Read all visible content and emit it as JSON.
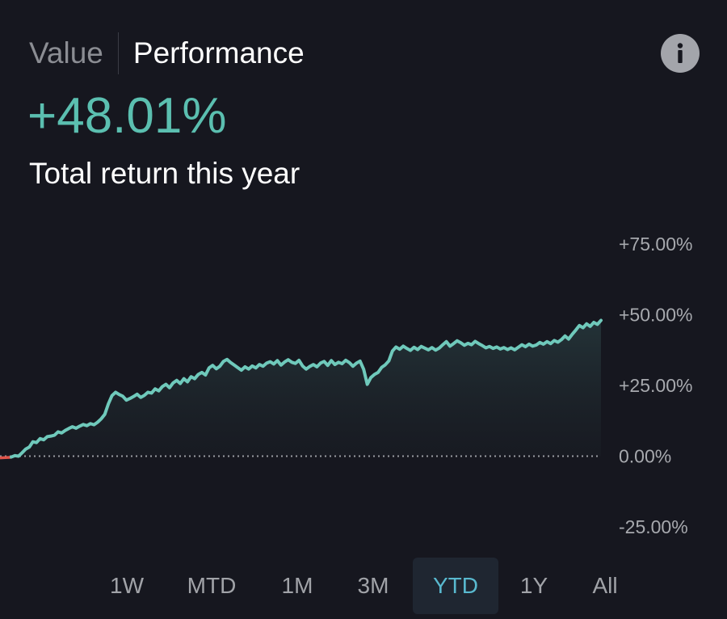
{
  "tabs": {
    "value_label": "Value",
    "performance_label": "Performance",
    "active": "Performance"
  },
  "info_icon": "info-icon",
  "summary": {
    "return_value": "+48.01%",
    "return_label": "Total return this year"
  },
  "colors": {
    "background": "#16171f",
    "accent": "#5bbfb0",
    "line": "#6fc9bb",
    "negative": "#e0544a",
    "range_active_text": "#59b9cf"
  },
  "ranges": {
    "items": [
      "1W",
      "MTD",
      "1M",
      "3M",
      "YTD",
      "1Y",
      "All"
    ],
    "active": "YTD"
  },
  "chart_data": {
    "type": "area",
    "title": "",
    "xlabel": "",
    "ylabel": "",
    "ylim": [
      -25,
      75
    ],
    "y_ticks": [
      "+75.00%",
      "+50.00%",
      "+25.00%",
      "0.00%",
      "-25.00%"
    ],
    "y_tick_values": [
      75,
      50,
      25,
      0,
      -25
    ],
    "baseline": 0,
    "grid": false,
    "series": [
      {
        "values": [
          -0.3,
          0.2,
          0.0,
          1.2,
          2.5,
          3.2,
          5.1,
          4.8,
          6.2,
          5.8,
          6.9,
          7.1,
          7.4,
          8.6,
          8.2,
          9.1,
          9.8,
          10.4,
          9.9,
          10.6,
          11.2,
          10.8,
          11.5,
          11.1,
          12.0,
          13.2,
          14.8,
          18.5,
          21.4,
          22.6,
          21.8,
          21.2,
          19.8,
          20.4,
          21.1,
          21.9,
          20.8,
          21.5,
          22.6,
          22.3,
          23.8,
          23.1,
          24.6,
          25.4,
          24.2,
          25.9,
          26.8,
          25.7,
          27.4,
          26.3,
          28.1,
          27.4,
          28.9,
          29.6,
          28.7,
          31.2,
          32.1,
          30.9,
          31.8,
          33.5,
          34.2,
          33.1,
          32.2,
          31.3,
          30.4,
          31.6,
          30.8,
          31.9,
          31.2,
          32.4,
          31.8,
          32.9,
          33.4,
          32.6,
          33.8,
          32.2,
          33.3,
          34.1,
          33.2,
          32.8,
          33.9,
          31.9,
          30.8,
          31.7,
          32.4,
          31.6,
          32.9,
          33.5,
          32.1,
          33.8,
          32.4,
          33.2,
          32.7,
          33.9,
          33.1,
          31.8,
          32.9,
          33.6,
          30.7,
          25.4,
          27.8,
          28.9,
          29.6,
          31.4,
          32.3,
          33.7,
          37.2,
          38.6,
          37.8,
          38.9,
          38.1,
          37.4,
          38.5,
          37.7,
          38.8,
          38.2,
          37.6,
          38.4,
          37.5,
          38.2,
          39.4,
          40.5,
          38.9,
          39.8,
          40.8,
          40.1,
          39.2,
          39.9,
          39.4,
          40.6,
          39.8,
          39.1,
          38.3,
          38.8,
          38.1,
          38.6,
          37.9,
          38.4,
          37.7,
          38.3,
          37.6,
          38.5,
          39.4,
          38.7,
          39.6,
          38.9,
          39.3,
          40.2,
          39.6,
          40.5,
          39.8,
          40.9,
          40.3,
          41.2,
          42.5,
          41.4,
          43.1,
          44.6,
          46.2,
          45.4,
          46.8,
          45.9,
          47.3,
          46.6,
          48.01
        ],
        "negative_start_values": [
          -0.6,
          -0.4
        ]
      }
    ]
  }
}
